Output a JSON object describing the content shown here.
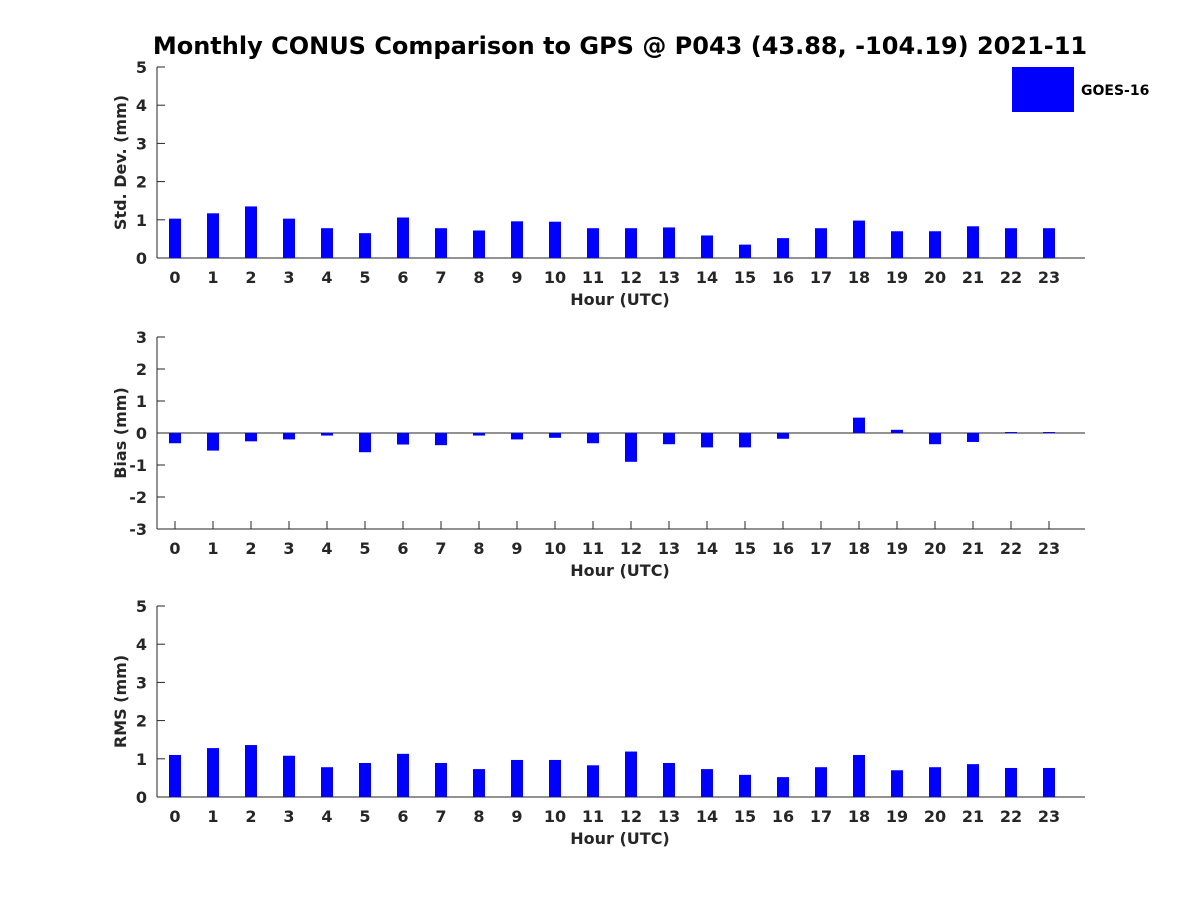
{
  "chart_data": [
    {
      "type": "bar",
      "title": "Monthly CONUS Comparison to GPS @ P043 (43.88, -104.19) 2021-11",
      "xlabel": "Hour (UTC)",
      "ylabel": "Std. Dev. (mm)",
      "ylim": [
        0,
        5
      ],
      "yticks": [
        0,
        1,
        2,
        3,
        4,
        5
      ],
      "categories": [
        "0",
        "1",
        "2",
        "3",
        "4",
        "5",
        "6",
        "7",
        "8",
        "9",
        "10",
        "11",
        "12",
        "13",
        "14",
        "15",
        "16",
        "17",
        "18",
        "19",
        "20",
        "21",
        "22",
        "23"
      ],
      "series": [
        {
          "name": "GOES-16",
          "color": "#0000ff",
          "values": [
            1.03,
            1.17,
            1.35,
            1.03,
            0.78,
            0.65,
            1.06,
            0.78,
            0.72,
            0.96,
            0.95,
            0.78,
            0.78,
            0.8,
            0.59,
            0.35,
            0.52,
            0.78,
            0.98,
            0.7,
            0.7,
            0.83,
            0.78,
            0.78
          ]
        }
      ],
      "legend": "top-right"
    },
    {
      "type": "bar",
      "xlabel": "Hour (UTC)",
      "ylabel": "Bias (mm)",
      "ylim": [
        -3,
        3
      ],
      "yticks": [
        -3,
        -2,
        -1,
        0,
        1,
        2,
        3
      ],
      "categories": [
        "0",
        "1",
        "2",
        "3",
        "4",
        "5",
        "6",
        "7",
        "8",
        "9",
        "10",
        "11",
        "12",
        "13",
        "14",
        "15",
        "16",
        "17",
        "18",
        "19",
        "20",
        "21",
        "22",
        "23"
      ],
      "series": [
        {
          "name": "GOES-16",
          "color": "#0000ff",
          "values": [
            -0.32,
            -0.55,
            -0.26,
            -0.2,
            -0.08,
            -0.6,
            -0.36,
            -0.38,
            -0.08,
            -0.2,
            -0.15,
            -0.32,
            -0.9,
            -0.35,
            -0.45,
            -0.45,
            -0.18,
            0.0,
            0.48,
            0.1,
            -0.35,
            -0.28,
            0.03,
            0.03
          ]
        }
      ]
    },
    {
      "type": "bar",
      "xlabel": "Hour (UTC)",
      "ylabel": "RMS (mm)",
      "ylim": [
        0,
        5
      ],
      "yticks": [
        0,
        1,
        2,
        3,
        4,
        5
      ],
      "categories": [
        "0",
        "1",
        "2",
        "3",
        "4",
        "5",
        "6",
        "7",
        "8",
        "9",
        "10",
        "11",
        "12",
        "13",
        "14",
        "15",
        "16",
        "17",
        "18",
        "19",
        "20",
        "21",
        "22",
        "23"
      ],
      "series": [
        {
          "name": "GOES-16",
          "color": "#0000ff",
          "values": [
            1.1,
            1.28,
            1.36,
            1.08,
            0.78,
            0.89,
            1.13,
            0.89,
            0.73,
            0.97,
            0.97,
            0.83,
            1.19,
            0.89,
            0.73,
            0.58,
            0.52,
            0.78,
            1.1,
            0.7,
            0.78,
            0.86,
            0.76,
            0.76
          ]
        }
      ]
    }
  ]
}
